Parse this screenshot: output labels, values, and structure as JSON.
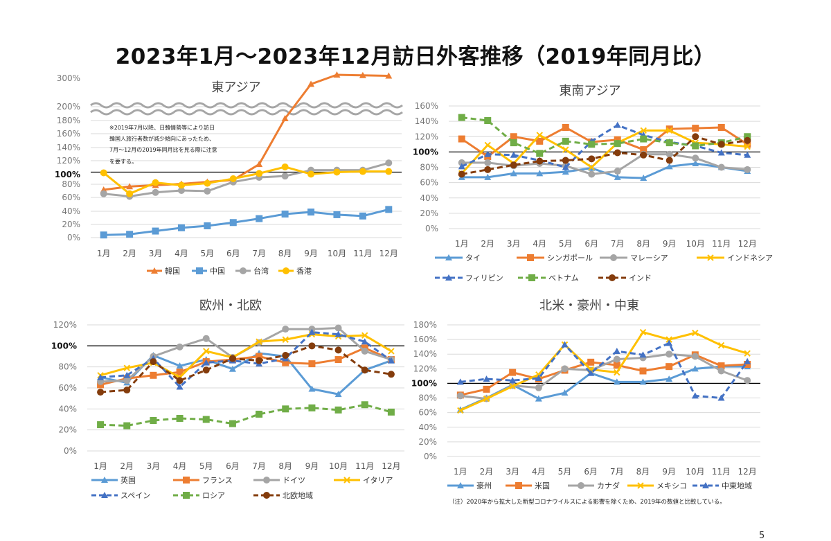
{
  "title": "2023年1月～2023年12月訪日外客推移（2019年同月比）",
  "page_number": "5",
  "footnote": "（注）2020年から拡大した新型コロナウイルスによる影響を除くため、2019年の数値と比較している。",
  "chart_data": [
    {
      "id": "east-asia",
      "type": "line",
      "title": "東アジア",
      "categories": [
        "1月",
        "2月",
        "3月",
        "4月",
        "5月",
        "6月",
        "7月",
        "8月",
        "9月",
        "10月",
        "11月",
        "12月"
      ],
      "y_ticks": [
        "0%",
        "20%",
        "40%",
        "60%",
        "80%",
        "100%",
        "120%",
        "140%",
        "160%",
        "180%",
        "200%",
        "300%"
      ],
      "axis_break": {
        "lower": 200,
        "upper": 300
      },
      "grid": true,
      "reference_line": 100,
      "note": [
        "※2019年7月以降、日韓情勢等により訪日",
        "韓国人旅行者数が減少傾向にあったため、",
        "7月～12月の2019年同月比を見る際に注意",
        "を要する。"
      ],
      "legend_position": "bottom",
      "series": [
        {
          "name": "韓国",
          "color": "#ED7D31",
          "style": "solid",
          "marker": "triangle",
          "values": [
            73,
            78,
            80,
            82,
            85,
            88,
            112,
            182,
            285,
            320,
            318,
            316
          ]
        },
        {
          "name": "中国",
          "color": "#5B9BD5",
          "style": "solid",
          "marker": "square",
          "values": [
            4,
            5,
            10,
            15,
            18,
            23,
            29,
            36,
            39,
            35,
            33,
            43
          ]
        },
        {
          "name": "台湾",
          "color": "#A5A5A5",
          "style": "solid",
          "marker": "circle",
          "values": [
            67,
            63,
            69,
            72,
            71,
            85,
            92,
            94,
            103,
            103,
            103,
            114
          ]
        },
        {
          "name": "香港",
          "color": "#FFC000",
          "style": "solid",
          "marker": "circle",
          "values": [
            99,
            67,
            84,
            80,
            83,
            90,
            98,
            108,
            97,
            100,
            101,
            101
          ]
        }
      ]
    },
    {
      "id": "southeast-asia",
      "type": "line",
      "title": "東南アジア",
      "categories": [
        "1月",
        "2月",
        "3月",
        "4月",
        "5月",
        "6月",
        "7月",
        "8月",
        "9月",
        "10月",
        "11月",
        "12月"
      ],
      "y_ticks": [
        "0%",
        "20%",
        "40%",
        "60%",
        "80%",
        "100%",
        "120%",
        "140%",
        "160%"
      ],
      "ylim": [
        0,
        160
      ],
      "grid": true,
      "reference_line": 100,
      "legend_position": "bottom",
      "series": [
        {
          "name": "タイ",
          "color": "#5B9BD5",
          "style": "solid",
          "marker": "triangle",
          "values": [
            67,
            67,
            72,
            72,
            74,
            79,
            67,
            66,
            81,
            85,
            80,
            75
          ]
        },
        {
          "name": "シンガポール",
          "color": "#ED7D31",
          "style": "solid",
          "marker": "square",
          "values": [
            117,
            94,
            120,
            114,
            132,
            113,
            116,
            103,
            130,
            131,
            132,
            110
          ]
        },
        {
          "name": "マレーシア",
          "color": "#A5A5A5",
          "style": "solid",
          "marker": "circle",
          "values": [
            86,
            86,
            82,
            85,
            82,
            71,
            75,
            97,
            97,
            92,
            80,
            77
          ]
        },
        {
          "name": "インドネシア",
          "color": "#FFC000",
          "style": "solid",
          "marker": "x",
          "values": [
            72,
            109,
            85,
            122,
            103,
            80,
            112,
            128,
            128,
            112,
            110,
            107
          ]
        },
        {
          "name": "フィリピン",
          "color": "#4472C4",
          "style": "dashed",
          "marker": "triangle",
          "values": [
            81,
            97,
            96,
            89,
            80,
            114,
            135,
            122,
            113,
            108,
            99,
            96
          ]
        },
        {
          "name": "ベトナム",
          "color": "#70AD47",
          "style": "dashed",
          "marker": "square",
          "values": [
            145,
            141,
            112,
            98,
            114,
            110,
            111,
            117,
            112,
            108,
            112,
            120
          ]
        },
        {
          "name": "インド",
          "color": "#843C0C",
          "style": "dashed",
          "marker": "circle",
          "values": [
            71,
            77,
            83,
            88,
            89,
            91,
            99,
            96,
            89,
            120,
            110,
            115
          ]
        }
      ]
    },
    {
      "id": "europe",
      "type": "line",
      "title": "欧州・北欧",
      "categories": [
        "1月",
        "2月",
        "3月",
        "4月",
        "5月",
        "6月",
        "7月",
        "8月",
        "9月",
        "10月",
        "11月",
        "12月"
      ],
      "y_ticks": [
        "0%",
        "20%",
        "40%",
        "60%",
        "80%",
        "100%",
        "120%"
      ],
      "ylim": [
        0,
        120
      ],
      "grid": true,
      "reference_line": 100,
      "legend_position": "bottom",
      "series": [
        {
          "name": "英国",
          "color": "#5B9BD5",
          "style": "solid",
          "marker": "triangle",
          "values": [
            70,
            65,
            91,
            81,
            87,
            78,
            93,
            90,
            59,
            54,
            77,
            86
          ]
        },
        {
          "name": "フランス",
          "color": "#ED7D31",
          "style": "solid",
          "marker": "square",
          "values": [
            63,
            69,
            72,
            75,
            85,
            87,
            90,
            84,
            83,
            87,
            98,
            87
          ]
        },
        {
          "name": "ドイツ",
          "color": "#A5A5A5",
          "style": "solid",
          "marker": "circle",
          "values": [
            66,
            67,
            90,
            99,
            107,
            89,
            103,
            116,
            116,
            117,
            95,
            87
          ]
        },
        {
          "name": "イタリア",
          "color": "#FFC000",
          "style": "solid",
          "marker": "x",
          "values": [
            72,
            79,
            84,
            70,
            95,
            89,
            104,
            106,
            111,
            109,
            110,
            95
          ]
        },
        {
          "name": "スペイン",
          "color": "#4472C4",
          "style": "dashed",
          "marker": "triangle",
          "values": [
            70,
            72,
            88,
            61,
            84,
            86,
            83,
            88,
            113,
            111,
            104,
            86
          ]
        },
        {
          "name": "ロシア",
          "color": "#70AD47",
          "style": "dashed",
          "marker": "square",
          "values": [
            25,
            24,
            29,
            31,
            30,
            26,
            35,
            40,
            41,
            39,
            44,
            37
          ]
        },
        {
          "name": "北欧地域",
          "color": "#843C0C",
          "style": "dashed",
          "marker": "circle",
          "values": [
            56,
            58,
            85,
            67,
            77,
            88,
            86,
            91,
            100,
            96,
            77,
            73
          ]
        }
      ]
    },
    {
      "id": "americas-oceania-me",
      "type": "line",
      "title": "北米・豪州・中東",
      "categories": [
        "1月",
        "2月",
        "3月",
        "4月",
        "5月",
        "6月",
        "7月",
        "8月",
        "9月",
        "10月",
        "11月",
        "12月"
      ],
      "y_ticks": [
        "0%",
        "20%",
        "40%",
        "60%",
        "80%",
        "100%",
        "120%",
        "140%",
        "160%",
        "180%"
      ],
      "ylim": [
        0,
        180
      ],
      "grid": true,
      "reference_line": 100,
      "legend_position": "bottom",
      "series": [
        {
          "name": "豪州",
          "color": "#5B9BD5",
          "style": "solid",
          "marker": "triangle",
          "values": [
            64,
            80,
            98,
            79,
            87,
            114,
            102,
            102,
            106,
            120,
            123,
            123
          ]
        },
        {
          "name": "米国",
          "color": "#ED7D31",
          "style": "solid",
          "marker": "square",
          "values": [
            84,
            92,
            115,
            106,
            118,
            129,
            125,
            117,
            123,
            139,
            124,
            126
          ]
        },
        {
          "name": "カナダ",
          "color": "#A5A5A5",
          "style": "solid",
          "marker": "circle",
          "values": [
            83,
            79,
            97,
            94,
            120,
            118,
            133,
            135,
            140,
            137,
            117,
            104
          ]
        },
        {
          "name": "メキシコ",
          "color": "#FFC000",
          "style": "solid",
          "marker": "x",
          "values": [
            63,
            79,
            96,
            112,
            153,
            119,
            115,
            170,
            160,
            169,
            152,
            141
          ]
        },
        {
          "name": "中東地域",
          "color": "#4472C4",
          "style": "dashed",
          "marker": "triangle",
          "values": [
            102,
            106,
            104,
            107,
            153,
            114,
            144,
            139,
            155,
            83,
            80,
            130
          ]
        }
      ]
    }
  ]
}
